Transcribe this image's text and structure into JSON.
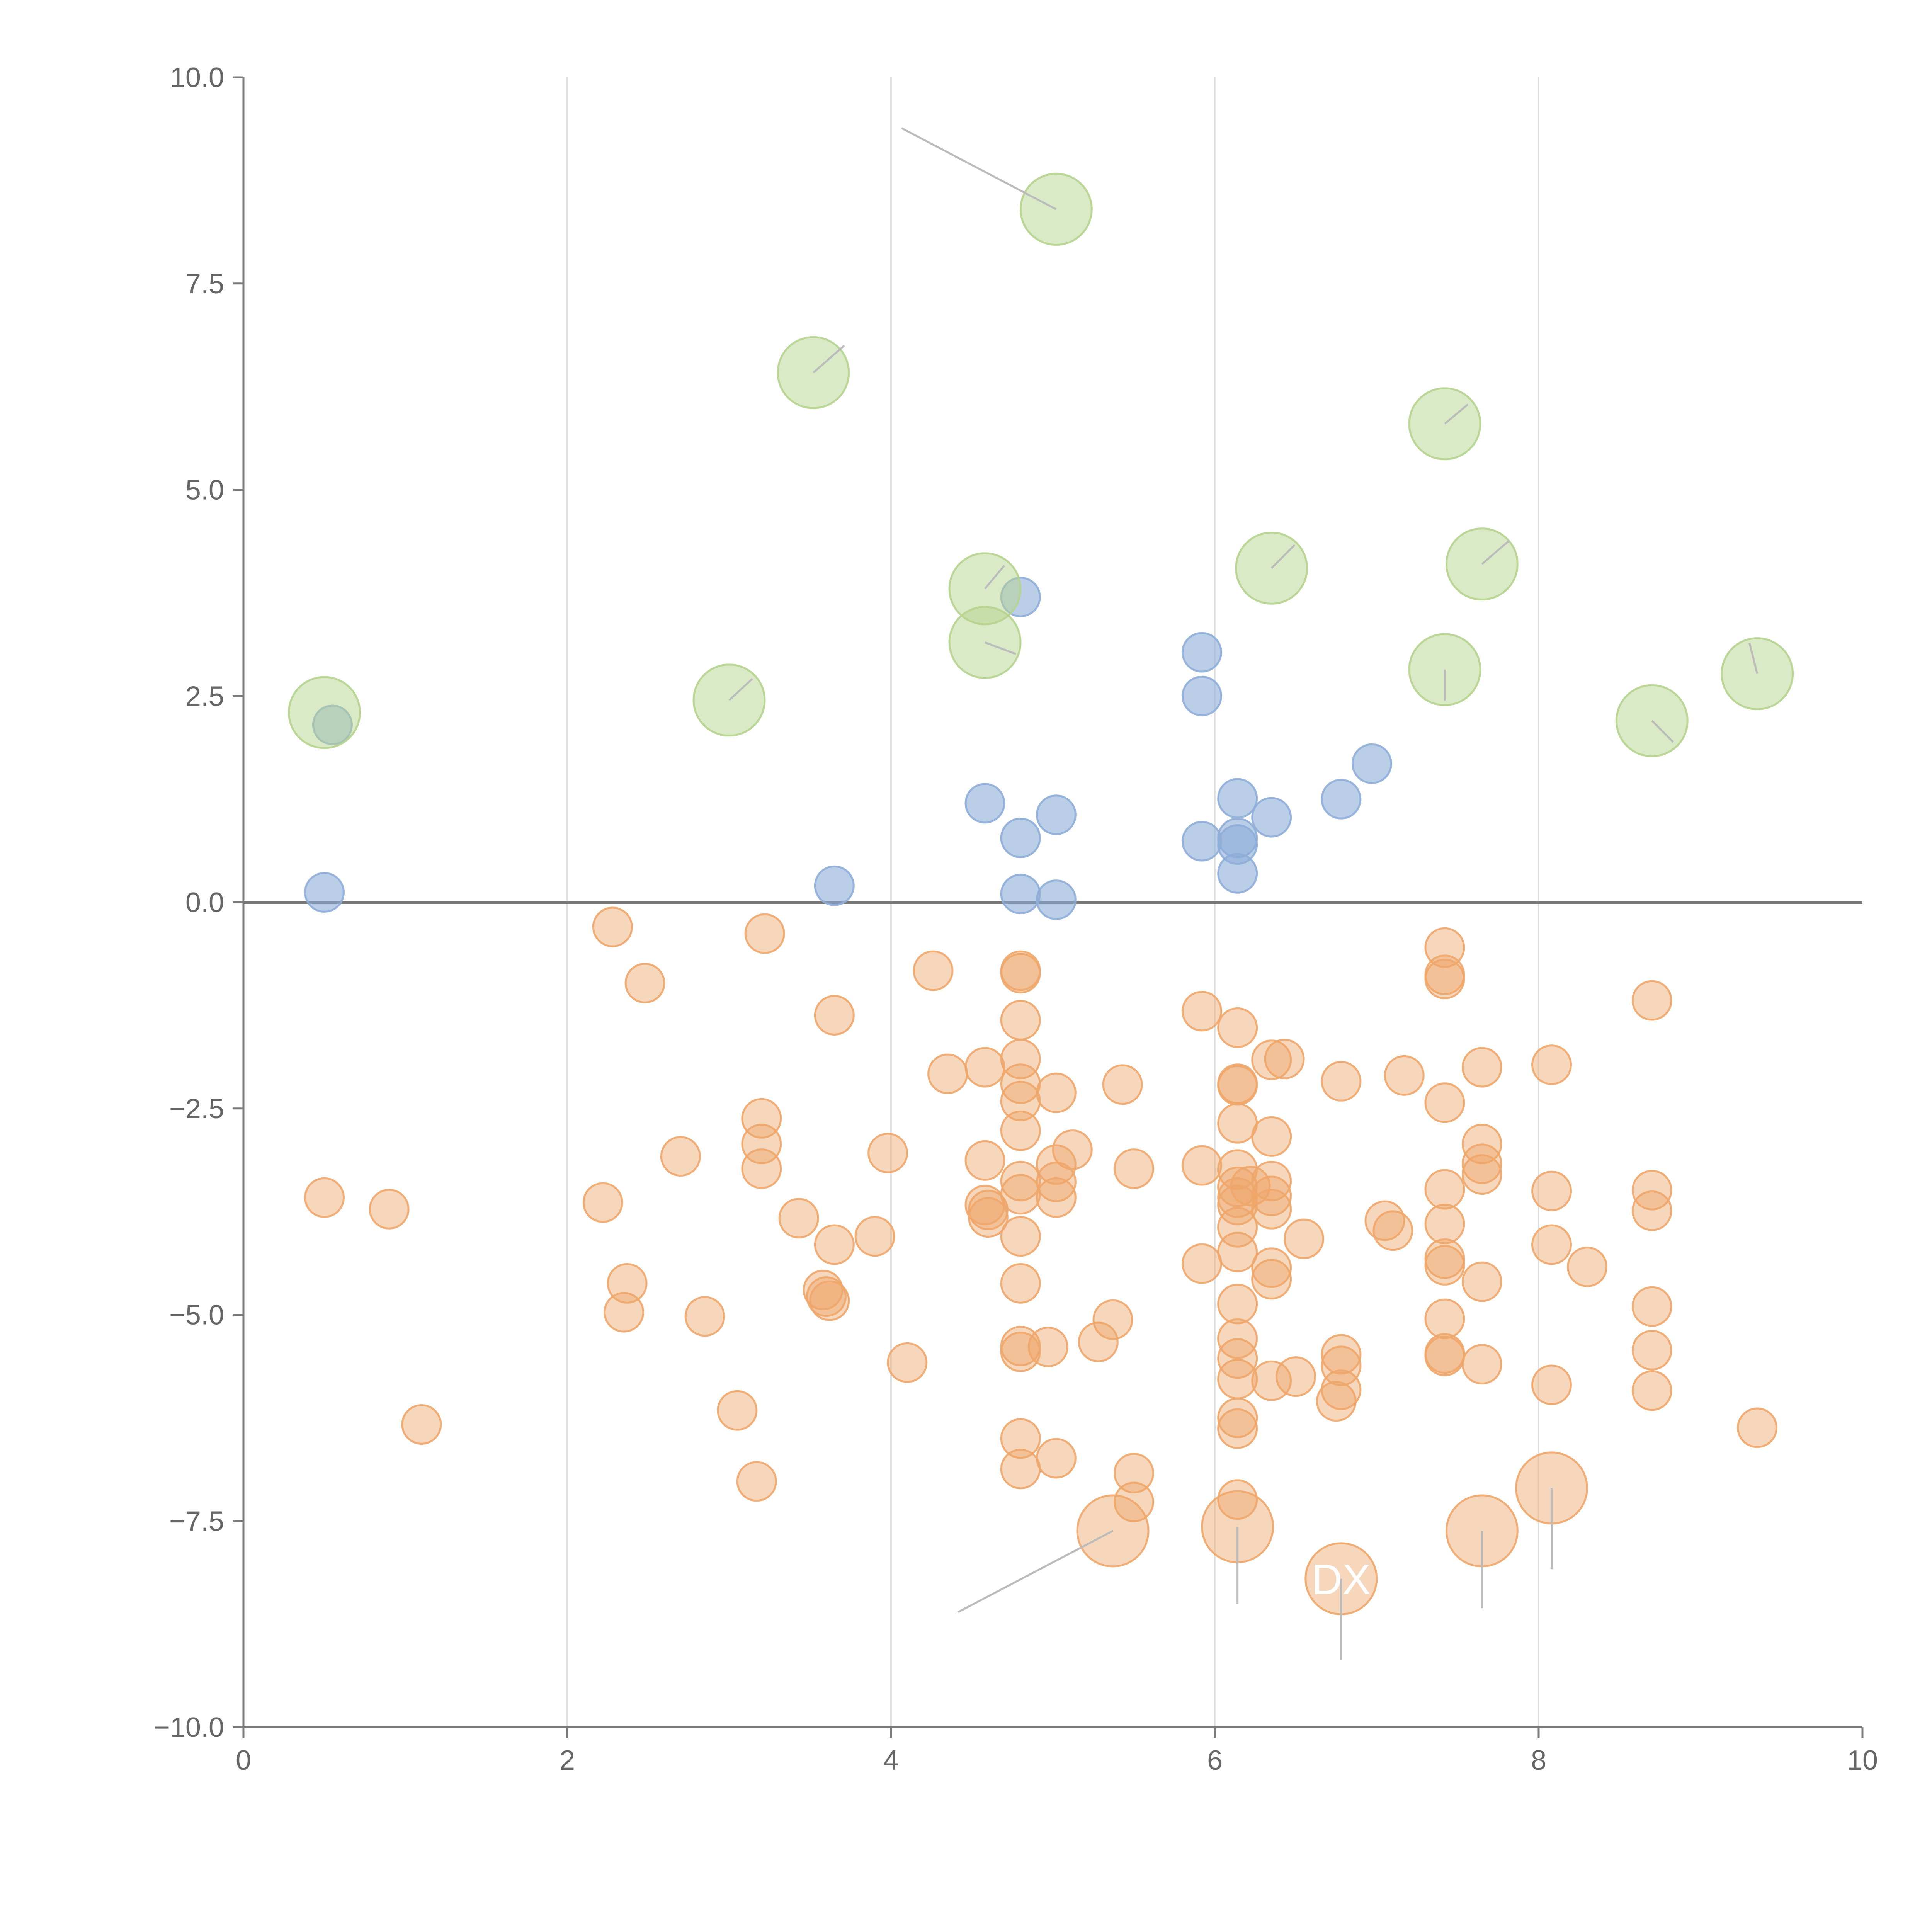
{
  "chart_data": {
    "type": "scatter",
    "title": "",
    "xlabel": "",
    "ylabel": "",
    "xlim": [
      0,
      10
    ],
    "ylim": [
      -10,
      10
    ],
    "x_ticks": [
      "0",
      "2",
      "4",
      "6",
      "8",
      "10"
    ],
    "y_ticks": [
      "−10.0",
      "−7.5",
      "−5.0",
      "−2.5",
      "0.0",
      "2.5",
      "5.0",
      "7.5",
      "10.0"
    ],
    "grid": "vertical",
    "zero_line": true,
    "colors": {
      "positive": "#8eadd8",
      "negative": "#eea66a",
      "highlight_top": "#b5d38e",
      "annotation_line": "#bbbbbb",
      "axis": "#7b7b7b"
    },
    "series": [
      {
        "name": "positive",
        "points": [
          [
            0.5,
            0.12
          ],
          [
            0.55,
            2.15
          ],
          [
            3.65,
            0.2
          ],
          [
            4.58,
            1.2
          ],
          [
            4.8,
            3.7
          ],
          [
            4.8,
            0.78
          ],
          [
            4.8,
            0.1
          ],
          [
            5.02,
            1.06
          ],
          [
            5.02,
            0.03
          ],
          [
            5.92,
            3.03
          ],
          [
            5.92,
            2.5
          ],
          [
            5.92,
            0.74
          ],
          [
            6.14,
            1.26
          ],
          [
            6.14,
            0.78
          ],
          [
            6.14,
            0.7
          ],
          [
            6.14,
            0.35
          ],
          [
            6.35,
            1.03
          ],
          [
            6.78,
            1.25
          ],
          [
            6.97,
            1.68
          ]
        ]
      },
      {
        "name": "negative",
        "points": [
          [
            0.5,
            -3.58
          ],
          [
            0.9,
            -3.72
          ],
          [
            1.1,
            -6.33
          ],
          [
            2.22,
            -3.64
          ],
          [
            2.28,
            -0.3
          ],
          [
            2.35,
            -4.97
          ],
          [
            2.37,
            -4.62
          ],
          [
            2.48,
            -0.98
          ],
          [
            2.7,
            -3.08
          ],
          [
            2.85,
            -5.02
          ],
          [
            3.05,
            -6.16
          ],
          [
            3.17,
            -7.02
          ],
          [
            3.2,
            -3.23
          ],
          [
            3.2,
            -2.62
          ],
          [
            3.2,
            -2.93
          ],
          [
            3.22,
            -0.38
          ],
          [
            3.43,
            -3.83
          ],
          [
            3.58,
            -4.7
          ],
          [
            3.6,
            -4.78
          ],
          [
            3.62,
            -4.83
          ],
          [
            3.65,
            -1.37
          ],
          [
            3.65,
            -4.15
          ],
          [
            3.9,
            -4.05
          ],
          [
            3.98,
            -3.04
          ],
          [
            4.1,
            -5.58
          ],
          [
            4.26,
            -0.83
          ],
          [
            4.35,
            -2.08
          ],
          [
            4.58,
            -2.0
          ],
          [
            4.58,
            -3.13
          ],
          [
            4.58,
            -3.67
          ],
          [
            4.6,
            -3.73
          ],
          [
            4.6,
            -3.82
          ],
          [
            4.8,
            -0.83
          ],
          [
            4.8,
            -0.86
          ],
          [
            4.8,
            -1.43
          ],
          [
            4.8,
            -1.9
          ],
          [
            4.8,
            -2.2
          ],
          [
            4.8,
            -2.41
          ],
          [
            4.8,
            -2.77
          ],
          [
            4.8,
            -3.38
          ],
          [
            4.8,
            -3.54
          ],
          [
            4.8,
            -4.05
          ],
          [
            4.8,
            -4.62
          ],
          [
            4.8,
            -5.38
          ],
          [
            4.8,
            -5.45
          ],
          [
            4.8,
            -6.5
          ],
          [
            4.8,
            -6.87
          ],
          [
            4.97,
            -5.39
          ],
          [
            5.02,
            -2.31
          ],
          [
            5.02,
            -3.18
          ],
          [
            5.02,
            -3.39
          ],
          [
            5.02,
            -3.58
          ],
          [
            5.02,
            -6.74
          ],
          [
            5.12,
            -3.0
          ],
          [
            5.28,
            -5.33
          ],
          [
            5.37,
            -5.06
          ],
          [
            5.43,
            -2.21
          ],
          [
            5.5,
            -3.23
          ],
          [
            5.5,
            -6.92
          ],
          [
            5.5,
            -7.27
          ],
          [
            5.92,
            -1.32
          ],
          [
            5.92,
            -3.19
          ],
          [
            5.92,
            -4.38
          ],
          [
            6.14,
            -1.52
          ],
          [
            6.14,
            -2.2
          ],
          [
            6.14,
            -2.22
          ],
          [
            6.14,
            -2.68
          ],
          [
            6.14,
            -3.24
          ],
          [
            6.14,
            -3.45
          ],
          [
            6.14,
            -3.58
          ],
          [
            6.14,
            -3.67
          ],
          [
            6.14,
            -3.94
          ],
          [
            6.14,
            -4.24
          ],
          [
            6.14,
            -4.87
          ],
          [
            6.14,
            -5.29
          ],
          [
            6.14,
            -5.53
          ],
          [
            6.14,
            -5.78
          ],
          [
            6.14,
            -6.25
          ],
          [
            6.14,
            -6.38
          ],
          [
            6.14,
            -7.24
          ],
          [
            6.22,
            -3.44
          ],
          [
            6.35,
            -1.91
          ],
          [
            6.35,
            -2.84
          ],
          [
            6.35,
            -3.38
          ],
          [
            6.35,
            -3.56
          ],
          [
            6.35,
            -3.72
          ],
          [
            6.35,
            -4.43
          ],
          [
            6.35,
            -4.57
          ],
          [
            6.35,
            -5.8
          ],
          [
            6.43,
            -1.9
          ],
          [
            6.5,
            -5.75
          ],
          [
            6.55,
            -4.08
          ],
          [
            6.75,
            -6.05
          ],
          [
            6.78,
            -2.17
          ],
          [
            6.78,
            -5.48
          ],
          [
            6.78,
            -5.62
          ],
          [
            6.78,
            -5.91
          ],
          [
            7.05,
            -3.86
          ],
          [
            7.1,
            -3.98
          ],
          [
            7.17,
            -2.1
          ],
          [
            7.42,
            -0.55
          ],
          [
            7.42,
            -0.88
          ],
          [
            7.42,
            -0.93
          ],
          [
            7.42,
            -2.43
          ],
          [
            7.42,
            -3.48
          ],
          [
            7.42,
            -3.9
          ],
          [
            7.42,
            -4.32
          ],
          [
            7.42,
            -4.4
          ],
          [
            7.42,
            -5.05
          ],
          [
            7.42,
            -5.47
          ],
          [
            7.42,
            -5.5
          ],
          [
            7.65,
            -2.0
          ],
          [
            7.65,
            -2.93
          ],
          [
            7.65,
            -3.17
          ],
          [
            7.65,
            -3.3
          ],
          [
            7.65,
            -4.6
          ],
          [
            7.65,
            -5.6
          ],
          [
            8.08,
            -1.97
          ],
          [
            8.08,
            -3.5
          ],
          [
            8.08,
            -4.15
          ],
          [
            8.08,
            -5.85
          ],
          [
            8.3,
            -4.42
          ],
          [
            8.7,
            -1.19
          ],
          [
            8.7,
            -3.49
          ],
          [
            8.7,
            -3.74
          ],
          [
            8.7,
            -4.9
          ],
          [
            8.7,
            -5.43
          ],
          [
            8.7,
            -5.92
          ],
          [
            9.35,
            -6.37
          ]
        ]
      },
      {
        "name": "top_positive",
        "points": [
          [
            0.5,
            2.3
          ],
          [
            3.0,
            2.45
          ],
          [
            3.52,
            6.42
          ],
          [
            4.58,
            3.8
          ],
          [
            4.58,
            3.15
          ],
          [
            5.02,
            8.4
          ],
          [
            6.35,
            4.05
          ],
          [
            7.42,
            5.8
          ],
          [
            7.42,
            2.82
          ],
          [
            7.65,
            4.1
          ],
          [
            8.7,
            2.2
          ],
          [
            9.35,
            2.77
          ]
        ]
      },
      {
        "name": "top_negative",
        "points": [
          [
            5.37,
            -7.62
          ],
          [
            6.14,
            -7.57
          ],
          [
            6.78,
            -8.2
          ],
          [
            7.65,
            -7.62
          ],
          [
            8.08,
            -7.1
          ]
        ]
      }
    ],
    "annotations": [
      {
        "x": 6.78,
        "y": -8.2,
        "label": "DX"
      }
    ]
  }
}
